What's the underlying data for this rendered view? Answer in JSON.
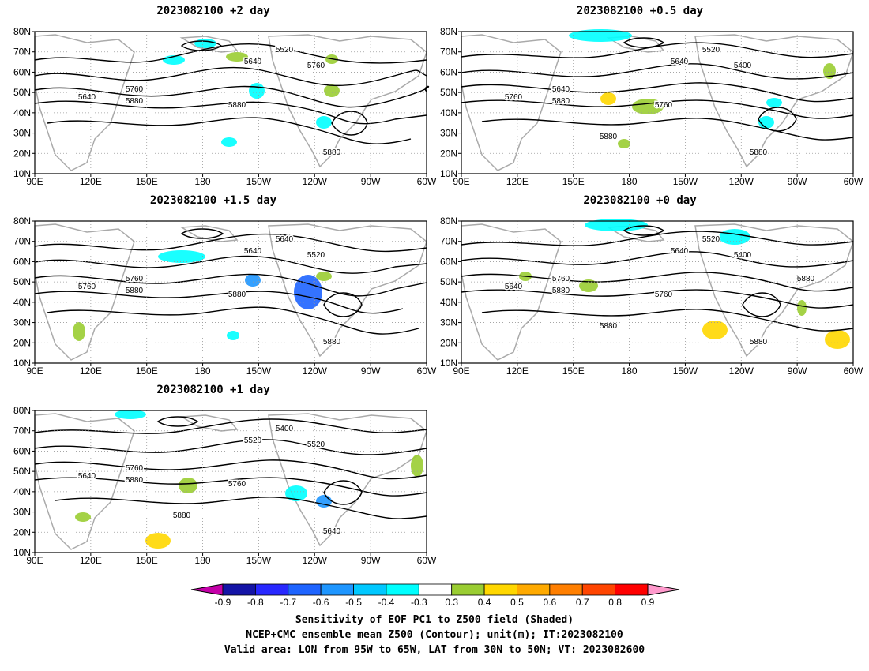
{
  "panels": [
    {
      "id": "p2d",
      "title": "2023082100 +2 day"
    },
    {
      "id": "p05d",
      "title": "2023082100 +0.5 day"
    },
    {
      "id": "p15d",
      "title": "2023082100 +1.5 day"
    },
    {
      "id": "p0d",
      "title": "2023082100 +0 day"
    },
    {
      "id": "p1d",
      "title": "2023082100 +1 day"
    }
  ],
  "axes": {
    "lat_labels": [
      "10N",
      "20N",
      "30N",
      "40N",
      "50N",
      "60N",
      "70N",
      "80N"
    ],
    "lon_labels": [
      "90E",
      "120E",
      "150E",
      "180",
      "150W",
      "120W",
      "90W",
      "60W"
    ]
  },
  "contour_labels": {
    "p2d": [
      "5520",
      "5640",
      "5760",
      "5640",
      "5760",
      "5880",
      "5880",
      "5880"
    ],
    "p05d": [
      "5520",
      "5640",
      "5400",
      "5760",
      "5640",
      "5760",
      "5880",
      "5880",
      "5880"
    ],
    "p15d": [
      "5640",
      "5640",
      "5520",
      "5760",
      "5760",
      "5880",
      "5880",
      "5880"
    ],
    "p0d": [
      "5520",
      "5640",
      "5400",
      "5640",
      "5760",
      "5760",
      "5880",
      "5880",
      "5880",
      "5880"
    ],
    "p1d": [
      "5400",
      "5520",
      "5520",
      "5640",
      "5760",
      "5760",
      "5640",
      "5880",
      "5880"
    ]
  },
  "colorbar": {
    "ticks": [
      "-0.9",
      "-0.8",
      "-0.7",
      "-0.6",
      "-0.5",
      "-0.4",
      "-0.3",
      "0.3",
      "0.4",
      "0.5",
      "0.6",
      "0.7",
      "0.8",
      "0.9"
    ],
    "colors": [
      "#c400a8",
      "#1414a6",
      "#2828ff",
      "#1e64ff",
      "#1e96ff",
      "#00c8ff",
      "#00ffff",
      "#ffffff",
      "#9acd32",
      "#ffd700",
      "#ffaa00",
      "#ff7f00",
      "#ff4500",
      "#ff0000",
      "#ff99cc"
    ]
  },
  "captions": [
    "Sensitivity of EOF PC1 to Z500 field (Shaded)",
    "NCEP+CMC ensemble mean Z500 (Contour); unit(m); IT:2023082100",
    "Valid area: LON from 95W to 65W, LAT from 30N to 50N; VT: 2023082600"
  ]
}
